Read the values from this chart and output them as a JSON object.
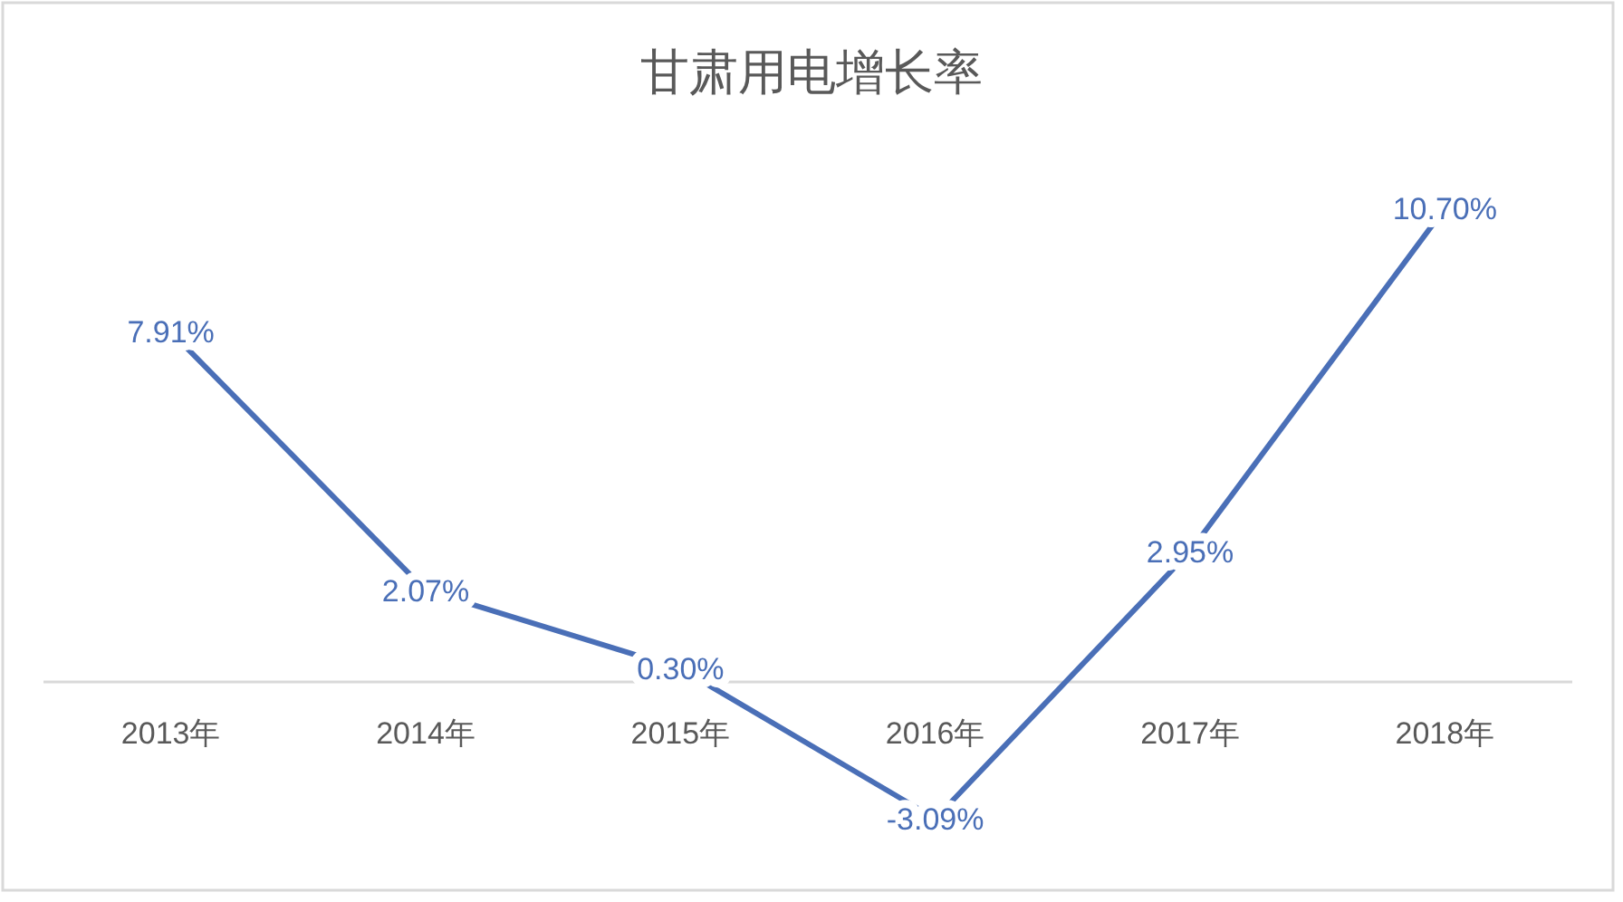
{
  "chart_data": {
    "type": "line",
    "title": "甘肃用电增长率",
    "categories": [
      "2013年",
      "2014年",
      "2015年",
      "2016年",
      "2017年",
      "2018年"
    ],
    "values": [
      7.91,
      2.07,
      0.3,
      -3.09,
      2.95,
      10.7
    ],
    "color": "#4a6fb7",
    "value_labels": [
      "7.91%",
      "2.07%",
      "0.30%",
      "-3.09%",
      "2.95%",
      "10.70%"
    ],
    "tick_labels": "x"
  }
}
